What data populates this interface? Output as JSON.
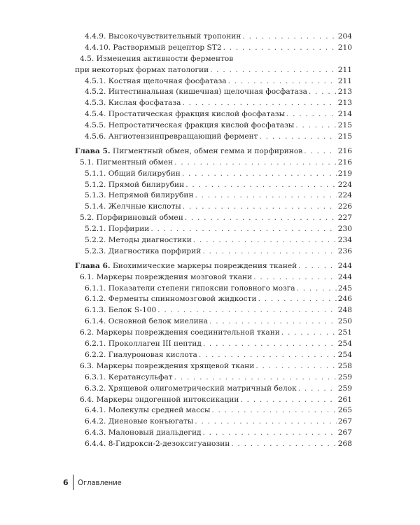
{
  "toc": [
    {
      "level": 2,
      "label": "4.4.9. Высокочувствительный тропонин",
      "page": "204"
    },
    {
      "level": 2,
      "label": "4.4.10. Растворимый рецептор ST2",
      "page": "210"
    },
    {
      "level": 1,
      "label": "4.5. Изменения активности ферментов",
      "page": ""
    },
    {
      "level": "cont",
      "label": "при некоторых формах патологии",
      "page": "211"
    },
    {
      "level": 2,
      "label": "4.5.1. Костная щелочная фосфатаза",
      "page": "211"
    },
    {
      "level": 2,
      "label": "4.5.2. Интестинальная (кишечная) щелочная фосфатаза",
      "page": "213"
    },
    {
      "level": 2,
      "label": "4.5.3. Кислая фосфатаза",
      "page": "213"
    },
    {
      "level": 2,
      "label": "4.5.4. Простатическая фракция кислой фосфатазы",
      "page": "214"
    },
    {
      "level": 2,
      "label": "4.5.5. Непростатическая фракция кислой фосфатазы",
      "page": "215"
    },
    {
      "level": 2,
      "label": "4.5.6. Ангиотензинпревращающий фермент",
      "page": "215"
    },
    {
      "level": 0,
      "prefix": "Глава 5.",
      "label": "Пигментный обмен, обмен гемма и порфиринов",
      "page": "216"
    },
    {
      "level": 1,
      "label": "5.1. Пигментный обмен",
      "page": "216"
    },
    {
      "level": 2,
      "label": "5.1.1. Общий билирубин",
      "page": "219"
    },
    {
      "level": 2,
      "label": "5.1.2. Прямой билирубин",
      "page": "224"
    },
    {
      "level": 2,
      "label": "5.1.3. Непрямой билирубин",
      "page": "224"
    },
    {
      "level": 2,
      "label": "5.1.4. Желчные кислоты",
      "page": "226"
    },
    {
      "level": 1,
      "label": "5.2. Порфириновый обмен",
      "page": "227"
    },
    {
      "level": 2,
      "label": "5.2.1. Порфирии",
      "page": "230"
    },
    {
      "level": 2,
      "label": "5.2.2. Методы диагностики",
      "page": "234"
    },
    {
      "level": 2,
      "label": "5.2.3. Диагностика порфирий",
      "page": "236"
    },
    {
      "level": 0,
      "prefix": "Глава 6.",
      "label": "Биохимические маркеры повреждения тканей",
      "page": "244"
    },
    {
      "level": 1,
      "label": "6.1. Маркеры повреждения мозговой ткани",
      "page": "244"
    },
    {
      "level": 2,
      "label": "6.1.1. Показатели степени гипоксии головного мозга",
      "page": "245"
    },
    {
      "level": 2,
      "label": "6.1.2. Ферменты спинномозговой жидкости",
      "page": "246"
    },
    {
      "level": 2,
      "label": "6.1.3. Белок S-100",
      "page": "248"
    },
    {
      "level": 2,
      "label": "6.1.4. Основной белок миелина",
      "page": "250"
    },
    {
      "level": 1,
      "label": "6.2. Маркеры повреждения соединительной ткани",
      "page": "251"
    },
    {
      "level": 2,
      "label": "6.2.1. Проколлаген III пептид",
      "page": "254"
    },
    {
      "level": 2,
      "label": "6.2.2. Гиалуроновая кислота",
      "page": "254"
    },
    {
      "level": 1,
      "label": "6.3. Маркеры повреждения хрящевой ткани",
      "page": "258"
    },
    {
      "level": 2,
      "label": "6.3.1. Кератансульфат",
      "page": "259"
    },
    {
      "level": 2,
      "label": "6.3.2. Хрящевой олигометрический матричный белок",
      "page": "259"
    },
    {
      "level": 1,
      "label": "6.4. Маркеры эндогенной интоксикации",
      "page": "261"
    },
    {
      "level": 2,
      "label": "6.4.1. Молекулы средней массы",
      "page": "265"
    },
    {
      "level": 2,
      "label": "6.4.2. Диеновые конъюгаты",
      "page": "267"
    },
    {
      "level": 2,
      "label": "6.4.3. Малоновый диальдегид",
      "page": "267"
    },
    {
      "level": 2,
      "label": "6.4.4. 8-Гидрокси-2-дезоксигуанозин",
      "page": "268"
    }
  ],
  "footer": {
    "page_number": "6",
    "section_title": "Оглавление"
  }
}
